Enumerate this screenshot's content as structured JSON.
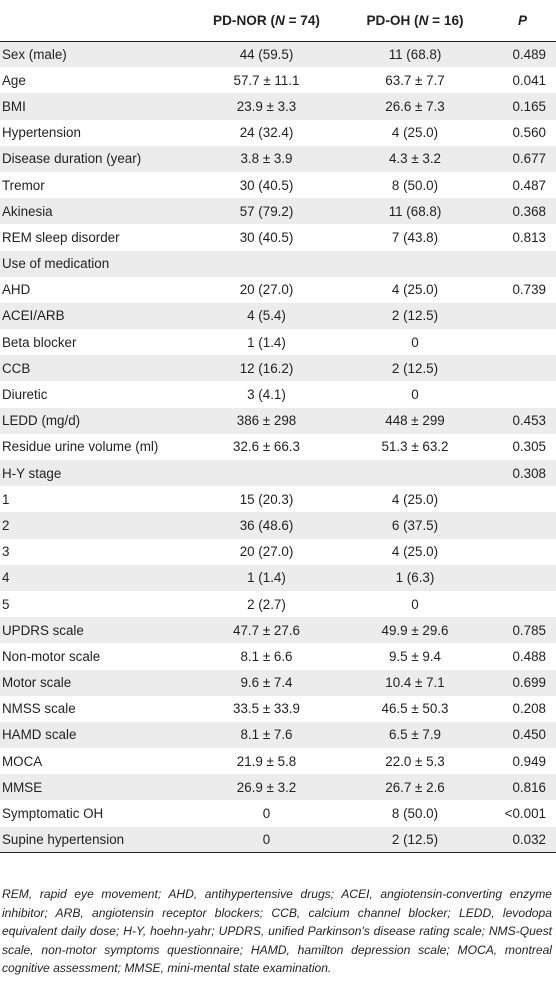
{
  "table": {
    "headers": [
      {
        "pre": "",
        "ital": "",
        "post": ""
      },
      {
        "pre": "PD-NOR (",
        "ital": "N",
        "post": " = 74)"
      },
      {
        "pre": "PD-OH (",
        "ital": "N",
        "post": " = 16)"
      },
      {
        "pre": "",
        "ital": "P",
        "post": ""
      }
    ],
    "rows": [
      [
        "Sex (male)",
        "44 (59.5)",
        "11 (68.8)",
        "0.489"
      ],
      [
        "Age",
        "57.7 ± 11.1",
        "63.7 ± 7.7",
        "0.041"
      ],
      [
        "BMI",
        "23.9 ± 3.3",
        "26.6 ± 7.3",
        "0.165"
      ],
      [
        "Hypertension",
        "24 (32.4)",
        "4 (25.0)",
        "0.560"
      ],
      [
        "Disease duration (year)",
        "3.8 ± 3.9",
        "4.3 ± 3.2",
        "0.677"
      ],
      [
        "Tremor",
        "30 (40.5)",
        "8 (50.0)",
        "0.487"
      ],
      [
        "Akinesia",
        "57 (79.2)",
        "11 (68.8)",
        "0.368"
      ],
      [
        "REM sleep disorder",
        "30 (40.5)",
        "7 (43.8)",
        "0.813"
      ],
      [
        "Use of medication",
        "",
        "",
        ""
      ],
      [
        "AHD",
        "20 (27.0)",
        "4 (25.0)",
        "0.739"
      ],
      [
        "ACEI/ARB",
        "4 (5.4)",
        "2 (12.5)",
        ""
      ],
      [
        "Beta blocker",
        "1 (1.4)",
        "0",
        ""
      ],
      [
        "CCB",
        "12 (16.2)",
        "2 (12.5)",
        ""
      ],
      [
        "Diuretic",
        "3 (4.1)",
        "0",
        ""
      ],
      [
        "LEDD (mg/d)",
        "386 ± 298",
        "448 ± 299",
        "0.453"
      ],
      [
        "Residue urine volume (ml)",
        "32.6 ± 66.3",
        "51.3 ± 63.2",
        "0.305"
      ],
      [
        "H-Y stage",
        "",
        "",
        "0.308"
      ],
      [
        "1",
        "15 (20.3)",
        "4 (25.0)",
        ""
      ],
      [
        "2",
        "36 (48.6)",
        "6 (37.5)",
        ""
      ],
      [
        "3",
        "20 (27.0)",
        "4 (25.0)",
        ""
      ],
      [
        "4",
        "1 (1.4)",
        "1 (6.3)",
        ""
      ],
      [
        "5",
        "2 (2.7)",
        "0",
        ""
      ],
      [
        "UPDRS scale",
        "47.7 ± 27.6",
        "49.9 ± 29.6",
        "0.785"
      ],
      [
        "Non-motor scale",
        "8.1 ± 6.6",
        "9.5 ± 9.4",
        "0.488"
      ],
      [
        "Motor scale",
        "9.6 ± 7.4",
        "10.4 ± 7.1",
        "0.699"
      ],
      [
        "NMSS scale",
        "33.5 ± 33.9",
        "46.5 ± 50.3",
        "0.208"
      ],
      [
        "HAMD scale",
        "8.1 ± 7.6",
        "6.5 ± 7.9",
        "0.450"
      ],
      [
        "MOCA",
        "21.9 ± 5.8",
        "22.0 ± 5.3",
        "0.949"
      ],
      [
        "MMSE",
        "26.9 ± 3.2",
        "26.7 ± 2.6",
        "0.816"
      ],
      [
        "Symptomatic OH",
        "0",
        "8 (50.0)",
        "<0.001"
      ],
      [
        "Supine hypertension",
        "0",
        "2 (12.5)",
        "0.032"
      ]
    ],
    "row_names": [
      "sex",
      "age",
      "bmi",
      "hypertension",
      "disease-duration",
      "tremor",
      "akinesia",
      "rem-sleep-disorder",
      "use-of-medication",
      "ahd",
      "acei-arb",
      "beta-blocker",
      "ccb",
      "diuretic",
      "ledd",
      "residue-urine-volume",
      "hy-stage",
      "hy-stage-1",
      "hy-stage-2",
      "hy-stage-3",
      "hy-stage-4",
      "hy-stage-5",
      "updrs-scale",
      "non-motor-scale",
      "motor-scale",
      "nmss-scale",
      "hamd-scale",
      "moca",
      "mmse",
      "symptomatic-oh",
      "supine-hypertension"
    ]
  },
  "footnote": "REM, rapid eye movement; AHD, antihypertensive drugs; ACEI, angiotensin-converting enzyme inhibitor; ARB, angiotensin receptor blockers; CCB, calcium channel blocker; LEDD, levodopa equivalent daily dose; H-Y, hoehn-yahr; UPDRS, unified Parkinson's disease rating scale; NMS-Quest scale, non-motor symptoms questionnaire; HAMD, hamilton depression scale; MOCA, montreal cognitive assessment; MMSE, mini-mental state examination.",
  "colors": {
    "text": "#231f20",
    "row_shade": "#ececec",
    "rule": "#231f20"
  }
}
